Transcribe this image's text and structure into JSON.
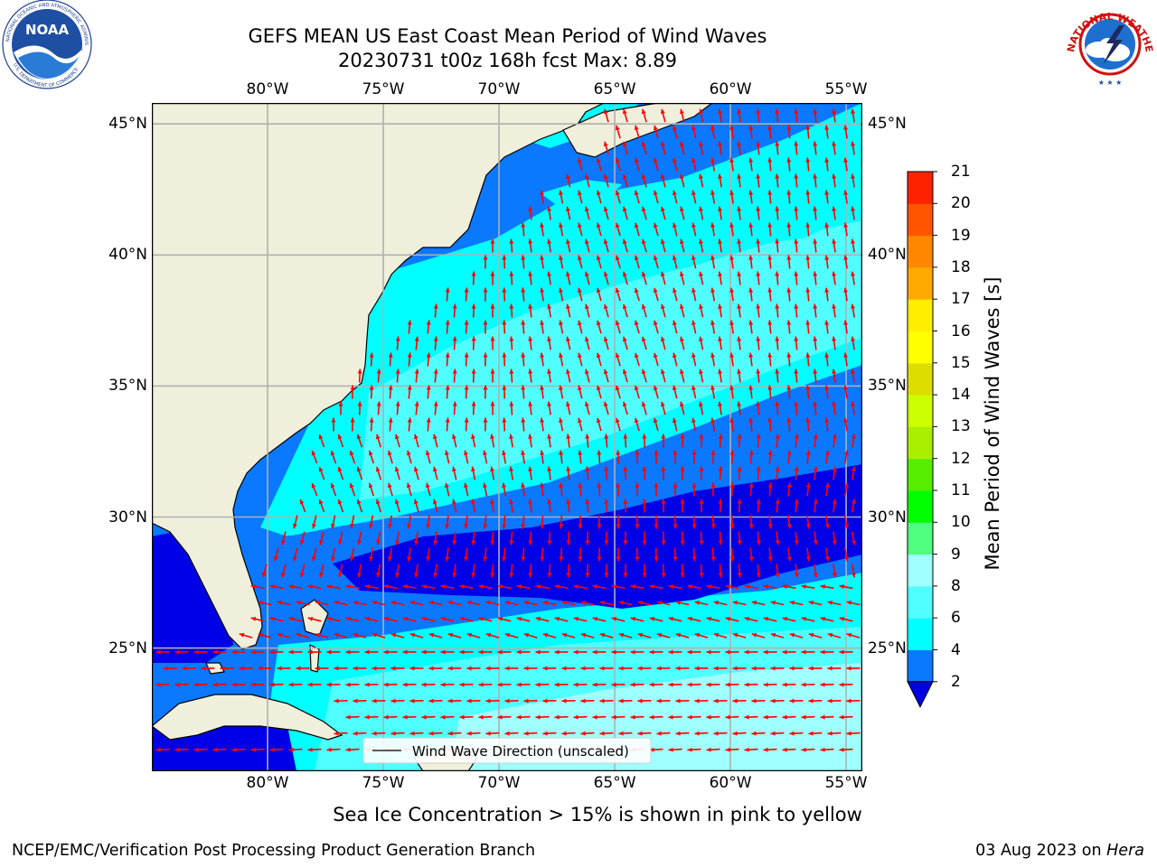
{
  "header": {
    "title_line1": "GEFS MEAN US East Coast Mean Period of Wind Waves",
    "title_line2": "20230731 t00z 168h fcst   Max: 8.89",
    "left_logo": "NOAA",
    "left_logo_ring_text": "NATIONAL OCEANIC AND ATMOSPHERIC ADMINISTRATION · U.S. DEPARTMENT OF COMMERCE",
    "right_logo_ring_text": "NATIONAL WEATHER SERVICE"
  },
  "map": {
    "lon_labels": [
      "80°W",
      "75°W",
      "70°W",
      "65°W",
      "60°W",
      "55°W"
    ],
    "lat_labels": [
      "45°N",
      "40°N",
      "35°N",
      "30°N",
      "25°N"
    ],
    "extent": {
      "lon": [
        -85,
        -54.3
      ],
      "lat": [
        20.3,
        45.8
      ]
    },
    "grid": true,
    "ocean_colors": {
      "band_2_4": "#0a78ff",
      "band_4_6": "#00ffff",
      "band_6_8": "#50ffff",
      "band_8_9": "#a0ffff",
      "below_2": "#0000e6"
    },
    "land_color": "#efefdc",
    "arrow_color": "#ff0000",
    "legend_text": "Wind Wave Direction (unscaled)",
    "max_value": 8.89
  },
  "colorbar": {
    "label": "Mean Period of Wind Waves [s]",
    "ticks": [
      "2",
      "4",
      "6",
      "8",
      "9",
      "10",
      "11",
      "12",
      "13",
      "14",
      "15",
      "16",
      "17",
      "18",
      "19",
      "20",
      "21"
    ],
    "colors": [
      "#0a78ff",
      "#00ffff",
      "#50ffff",
      "#a0ffff",
      "#50ff80",
      "#00ff00",
      "#55ee00",
      "#aaee00",
      "#ccff00",
      "#dddd00",
      "#ffff00",
      "#ffee00",
      "#ffaa00",
      "#ff8800",
      "#ff5500",
      "#ff2200"
    ],
    "under_color": "#0000e6",
    "top_color": "#ff0000"
  },
  "caption": "Sea Ice Concentration > 15% is shown in pink to yellow",
  "footer": {
    "left": "NCEP/EMC/Verification Post Processing Product Generation Branch",
    "date": "03 Aug 2023 on ",
    "machine": "Hera"
  }
}
